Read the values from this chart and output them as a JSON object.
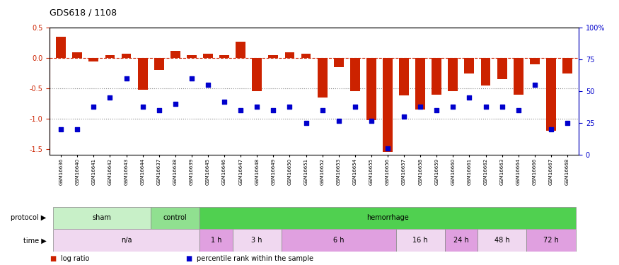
{
  "title": "GDS618 / 1108",
  "samples": [
    "GSM16636",
    "GSM16640",
    "GSM16641",
    "GSM16642",
    "GSM16643",
    "GSM16644",
    "GSM16637",
    "GSM16638",
    "GSM16639",
    "GSM16645",
    "GSM16646",
    "GSM16647",
    "GSM16648",
    "GSM16649",
    "GSM16650",
    "GSM16651",
    "GSM16652",
    "GSM16653",
    "GSM16654",
    "GSM16655",
    "GSM16656",
    "GSM16657",
    "GSM16658",
    "GSM16659",
    "GSM16660",
    "GSM16661",
    "GSM16662",
    "GSM16663",
    "GSM16664",
    "GSM16666",
    "GSM16667",
    "GSM16668"
  ],
  "log_ratio": [
    0.35,
    0.1,
    -0.05,
    0.05,
    0.07,
    -0.52,
    -0.2,
    0.12,
    0.05,
    0.07,
    0.05,
    0.27,
    -0.54,
    0.05,
    0.1,
    0.07,
    -0.65,
    -0.15,
    -0.55,
    -1.02,
    -1.55,
    -0.62,
    -0.85,
    -0.6,
    -0.55,
    -0.25,
    -0.45,
    -0.35,
    -0.6,
    -0.1,
    -1.2,
    -0.25
  ],
  "percentile_rank": [
    20,
    20,
    38,
    45,
    60,
    38,
    35,
    40,
    60,
    55,
    42,
    35,
    38,
    35,
    38,
    25,
    35,
    27,
    38,
    27,
    5,
    30,
    38,
    35,
    38,
    45,
    38,
    38,
    35,
    55,
    20,
    25
  ],
  "protocol_groups": [
    {
      "label": "sham",
      "start": 0,
      "end": 6,
      "color": "#c8f0c8"
    },
    {
      "label": "control",
      "start": 6,
      "end": 9,
      "color": "#90e090"
    },
    {
      "label": "hemorrhage",
      "start": 9,
      "end": 32,
      "color": "#50d050"
    }
  ],
  "time_groups": [
    {
      "label": "n/a",
      "start": 0,
      "end": 9,
      "color": "#f0d8f0"
    },
    {
      "label": "1 h",
      "start": 9,
      "end": 11,
      "color": "#e0a0e0"
    },
    {
      "label": "3 h",
      "start": 11,
      "end": 14,
      "color": "#f0d8f0"
    },
    {
      "label": "6 h",
      "start": 14,
      "end": 21,
      "color": "#e0a0e0"
    },
    {
      "label": "16 h",
      "start": 21,
      "end": 24,
      "color": "#f0d8f0"
    },
    {
      "label": "24 h",
      "start": 24,
      "end": 26,
      "color": "#e0a0e0"
    },
    {
      "label": "48 h",
      "start": 26,
      "end": 29,
      "color": "#f0d8f0"
    },
    {
      "label": "72 h",
      "start": 29,
      "end": 32,
      "color": "#e0a0e0"
    }
  ],
  "bar_color": "#cc2200",
  "dot_color": "#0000cc",
  "ylim_left": [
    -1.6,
    0.5
  ],
  "ylim_right": [
    0,
    100
  ],
  "yticks_left": [
    -1.5,
    -1.0,
    -0.5,
    0.0,
    0.5
  ],
  "yticks_right": [
    0,
    25,
    50,
    75,
    100
  ],
  "ytick_labels_right": [
    "0",
    "25",
    "50",
    "75",
    "100%"
  ],
  "hlines": [
    0.0,
    -0.5,
    -1.0
  ],
  "hline_styles": [
    "dashed",
    "dotted",
    "dotted"
  ],
  "hline_colors": [
    "#cc2200",
    "#888888",
    "#888888"
  ]
}
